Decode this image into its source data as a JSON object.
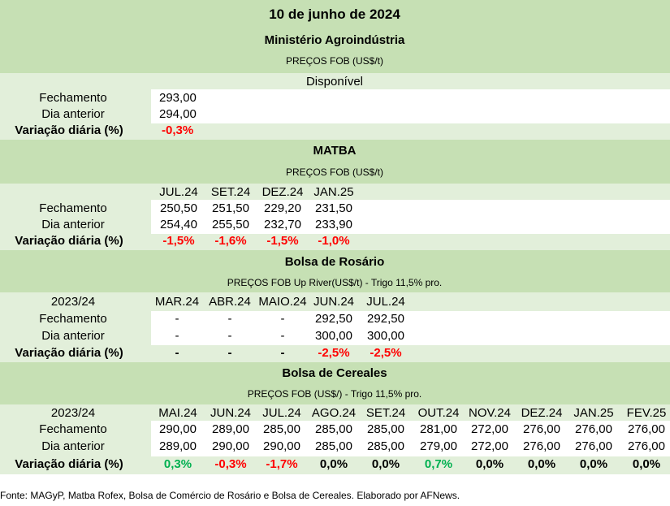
{
  "title": "10 de junho de 2024",
  "labels": {
    "fechamento": "Fechamento",
    "dia_anterior": "Dia anterior",
    "variacao": "Variação diária (%)",
    "year": "2023/24"
  },
  "s1": {
    "title": "Ministério Agroindústria",
    "subtitle": "PREÇOS FOB (US$/t)",
    "col": "Disponível",
    "fech": "293,00",
    "ant": "294,00",
    "var": "-0,3%"
  },
  "s2": {
    "title": "MATBA",
    "subtitle": "PREÇOS FOB (US$/t)",
    "cols": [
      "JUL.24",
      "SET.24",
      "DEZ.24",
      "JAN.25"
    ],
    "fech": [
      "250,50",
      "251,50",
      "229,20",
      "231,50"
    ],
    "ant": [
      "254,40",
      "255,50",
      "232,70",
      "233,90"
    ],
    "var": [
      "-1,5%",
      "-1,6%",
      "-1,5%",
      "-1,0%"
    ]
  },
  "s3": {
    "title": "Bolsa de Rosário",
    "subtitle": "PREÇOS FOB Up River(US$/t) - Trigo 11,5% pro.",
    "cols": [
      "MAR.24",
      "ABR.24",
      "MAIO.24",
      "JUN.24",
      "JUL.24"
    ],
    "fech": [
      "-",
      "-",
      "-",
      "292,50",
      "292,50"
    ],
    "ant": [
      "-",
      "-",
      "-",
      "300,00",
      "300,00"
    ],
    "var": [
      "-",
      "-",
      "-",
      "-2,5%",
      "-2,5%"
    ]
  },
  "s4": {
    "title": "Bolsa de Cereales",
    "subtitle": "PREÇOS FOB (US$/) - Trigo 11,5% pro.",
    "cols": [
      "MAI.24",
      "JUN.24",
      "JUL.24",
      "AGO.24",
      "SET.24",
      "OUT.24",
      "NOV.24",
      "DEZ.24",
      "JAN.25",
      "FEV.25"
    ],
    "fech": [
      "290,00",
      "289,00",
      "285,00",
      "285,00",
      "285,00",
      "281,00",
      "272,00",
      "276,00",
      "276,00",
      "276,00"
    ],
    "ant": [
      "289,00",
      "290,00",
      "290,00",
      "285,00",
      "285,00",
      "279,00",
      "272,00",
      "276,00",
      "276,00",
      "276,00"
    ],
    "var": [
      "0,3%",
      "-0,3%",
      "-1,7%",
      "0,0%",
      "0,0%",
      "0,7%",
      "0,0%",
      "0,0%",
      "0,0%",
      "0,0%"
    ]
  },
  "footer": "Fonte: MAGyP, Matba Rofex, Bolsa de Comércio de Rosário e Bolsa de Cereales. Elaborado por AFNews.",
  "colors": {
    "band_green": "#c6e0b4",
    "band_light": "#e2efda",
    "negative": "#ff0000",
    "positive": "#00b050"
  }
}
